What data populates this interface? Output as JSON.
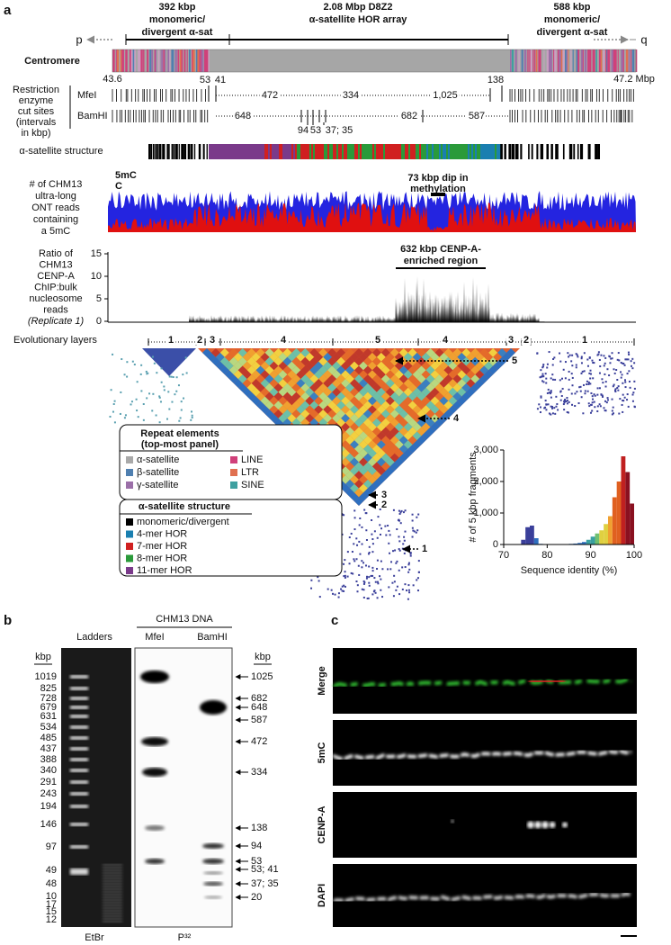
{
  "panel_a": {
    "label": "a",
    "header": {
      "left": [
        "392 kbp",
        "monomeric/",
        "divergent α-sat"
      ],
      "middle": [
        "2.08 Mbp D8Z2",
        "α-satellite HOR array"
      ],
      "right": [
        "588 kbp",
        "monomeric/",
        "divergent α-sat"
      ],
      "p": "p",
      "q": "q"
    },
    "centromere": {
      "label": "Centromere",
      "start": "43.6",
      "end": "47.2 Mbp"
    },
    "restriction": {
      "label": [
        "Restriction",
        "enzyme",
        "cut sites",
        "(intervals",
        "in kbp)"
      ],
      "mfei": {
        "name": "MfeI",
        "intervals": [
          "472",
          "334",
          "1,025"
        ],
        "above": [
          "53",
          "41",
          "138"
        ]
      },
      "bamhi": {
        "name": "BamHI",
        "intervals": [
          "648",
          "682",
          "587"
        ],
        "below": [
          "94",
          "53",
          "37; 35"
        ]
      }
    },
    "structure_label": "α-satellite structure",
    "methylation": {
      "label": [
        "# of CHM13",
        "ultra-long",
        "ONT reads",
        "containing",
        "a 5mC"
      ],
      "legend": [
        "5mC",
        "C"
      ],
      "annotation": [
        "73 kbp dip in",
        "methylation"
      ]
    },
    "chip": {
      "label": [
        "Ratio of",
        "CHM13",
        "CENP-A",
        "ChIP:bulk",
        "nucleosome",
        "reads",
        "(Replicate 1)"
      ],
      "ylim": [
        0,
        15
      ],
      "yticks": [
        0,
        5,
        10,
        15
      ],
      "annotation": [
        "632 kbp CENP-A-",
        "enriched region"
      ]
    },
    "layers": {
      "label": "Evolutionary layers",
      "top": [
        "1",
        "2",
        "3",
        "4",
        "5",
        "4",
        "3",
        "2",
        "1"
      ],
      "arrows": [
        "5",
        "4",
        "3",
        "2",
        "1"
      ]
    },
    "legend": {
      "repeat_title": [
        "Repeat elements",
        "(top-most panel)"
      ],
      "repeat_items": [
        {
          "name": "α-satellite",
          "color": "#a9a9a9"
        },
        {
          "name": "β-satellite",
          "color": "#4f7fb0"
        },
        {
          "name": "γ-satellite",
          "color": "#9b6fa8"
        },
        {
          "name": "LINE",
          "color": "#d0407a"
        },
        {
          "name": "LTR",
          "color": "#e07050"
        },
        {
          "name": "SINE",
          "color": "#3fa0a0"
        }
      ],
      "structure_title": "α-satellite structure",
      "structure_items": [
        {
          "name": "monomeric/divergent",
          "color": "#000000"
        },
        {
          "name": "4-mer HOR",
          "color": "#1a7fb0"
        },
        {
          "name": "7-mer HOR",
          "color": "#d02020"
        },
        {
          "name": "8-mer HOR",
          "color": "#2a9a3a"
        },
        {
          "name": "11-mer HOR",
          "color": "#7a3a8a"
        }
      ]
    },
    "histogram": {
      "type": "histogram",
      "xlabel": "Sequence identity (%)",
      "ylabel": "# of 5 kbp fragments",
      "bins": [
        70,
        71,
        72,
        73,
        74,
        75,
        76,
        77,
        78,
        79,
        80,
        81,
        82,
        83,
        84,
        85,
        86,
        87,
        88,
        89,
        90,
        91,
        92,
        93,
        94,
        95,
        96,
        97,
        98,
        99,
        100
      ],
      "values": [
        0,
        0,
        0,
        0,
        150,
        550,
        600,
        200,
        20,
        0,
        0,
        0,
        0,
        0,
        10,
        20,
        30,
        50,
        80,
        150,
        250,
        350,
        450,
        650,
        900,
        1500,
        2000,
        2800,
        2300,
        1300
      ],
      "xlim": [
        70,
        100
      ],
      "ylim": [
        0,
        3000
      ],
      "xticks": [
        70,
        80,
        90,
        100
      ],
      "yticks": [
        0,
        {
          "value": 1000,
          "label": "1,000"
        },
        {
          "value": 2000,
          "label": "2,000"
        },
        {
          "value": 3000,
          "label": "3,000"
        }
      ]
    }
  },
  "panel_b": {
    "label": "b",
    "ladders": "Ladders",
    "dna": "CHM13 DNA",
    "lanes": [
      "MfeI",
      "BamHI"
    ],
    "unit_left": "kbp",
    "unit_right": "kbp",
    "ladder_sizes": [
      "1019",
      "825",
      "728",
      "679",
      "631",
      "534",
      "485",
      "437",
      "388",
      "340",
      "291",
      "243",
      "194",
      "146",
      "97",
      "49",
      "48",
      "10",
      "17",
      "15",
      "12"
    ],
    "band_sizes": [
      "1025",
      "682",
      "648",
      "587",
      "472",
      "334",
      "138",
      "94",
      "53",
      "53; 41",
      "37; 35",
      "20"
    ],
    "stains": [
      "EtBr",
      "P³²"
    ]
  },
  "panel_c": {
    "label": "c",
    "channels": [
      "Merge",
      "5mC",
      "CENP-A",
      "DAPI"
    ]
  }
}
